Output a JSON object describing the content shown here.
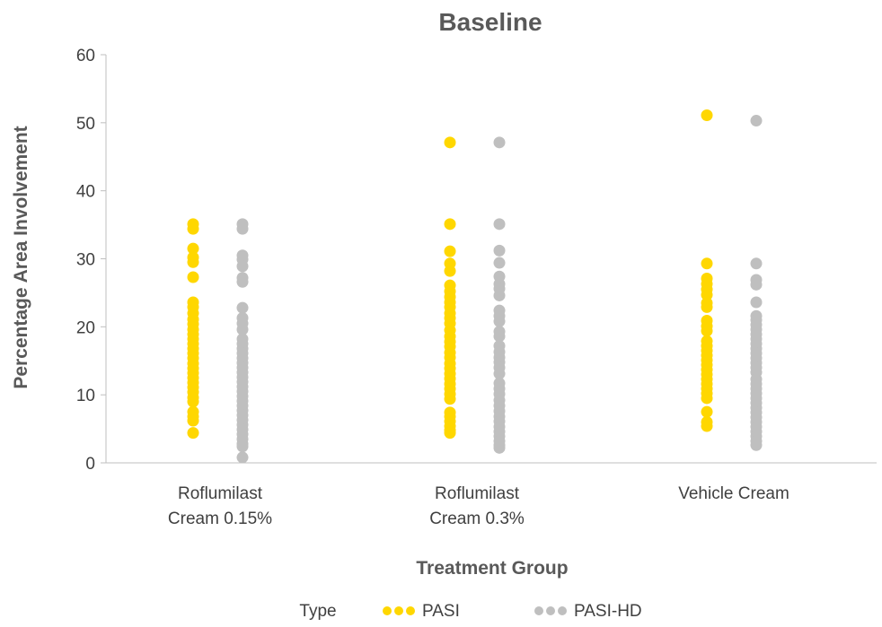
{
  "chart_data": {
    "type": "scatter",
    "title": "Baseline",
    "xlabel": "Treatment Group",
    "ylabel": "Percentage Area Involvement",
    "ylim": [
      0,
      60
    ],
    "yticks": [
      "0",
      "10",
      "20",
      "30",
      "40",
      "50",
      "60"
    ],
    "categories": [
      [
        "Roflumilast",
        "Cream 0.15%"
      ],
      [
        "Roflumilast",
        "Cream 0.3%"
      ],
      [
        "Vehicle Cream"
      ]
    ],
    "grid": false,
    "legend": {
      "title": "Type",
      "position": "bottom"
    },
    "series": [
      {
        "name": "PASI",
        "color": "#FFD700",
        "values": [
          [
            35.1,
            34.4,
            31.5,
            30.2,
            29.5,
            27.3,
            23.6,
            22.9,
            22.0,
            21.1,
            20.4,
            19.6,
            18.9,
            18.2,
            17.5,
            16.8,
            16.1,
            15.4,
            14.6,
            13.9,
            13.2,
            12.5,
            11.8,
            11.1,
            10.4,
            9.6,
            9.0,
            7.5,
            6.8,
            6.2,
            4.4
          ],
          [
            47.1,
            35.1,
            31.1,
            29.3,
            28.2,
            26.1,
            25.2,
            24.4,
            23.6,
            22.9,
            22.0,
            21.3,
            20.5,
            19.5,
            18.6,
            17.8,
            17.1,
            16.2,
            15.5,
            14.6,
            13.9,
            13.1,
            12.4,
            11.6,
            10.9,
            10.1,
            9.4,
            7.4,
            6.8,
            6.1,
            5.4,
            4.8,
            4.4
          ],
          [
            51.1,
            29.3,
            27.1,
            26.3,
            25.5,
            24.7,
            23.5,
            22.9,
            20.9,
            20.1,
            19.4,
            17.9,
            17.2,
            16.5,
            15.8,
            15.1,
            14.4,
            13.7,
            13.0,
            12.3,
            11.6,
            10.9,
            10.2,
            9.5,
            7.5,
            6.0,
            5.4
          ]
        ]
      },
      {
        "name": "PASI-HD",
        "color": "#BFBFBF",
        "values": [
          [
            35.1,
            34.4,
            30.5,
            29.9,
            28.9,
            27.2,
            26.6,
            22.8,
            21.3,
            20.5,
            19.6,
            18.2,
            17.5,
            16.8,
            16.1,
            15.4,
            14.7,
            14.0,
            13.3,
            12.6,
            11.9,
            11.2,
            10.5,
            9.8,
            9.1,
            8.4,
            7.7,
            7.0,
            6.3,
            5.6,
            4.9,
            4.2,
            3.5,
            2.8,
            2.4,
            0.8
          ],
          [
            47.1,
            35.1,
            31.2,
            29.4,
            27.4,
            26.3,
            25.6,
            24.6,
            22.4,
            21.6,
            20.8,
            19.3,
            18.6,
            17.2,
            16.3,
            15.5,
            14.8,
            14.0,
            13.1,
            11.7,
            10.9,
            10.1,
            9.2,
            8.4,
            7.6,
            6.8,
            6.1,
            5.3,
            4.6,
            3.9,
            3.2,
            2.6,
            2.2
          ],
          [
            50.3,
            29.3,
            26.9,
            26.2,
            23.6,
            21.6,
            21.0,
            20.3,
            19.6,
            18.9,
            18.2,
            17.5,
            16.8,
            16.1,
            15.4,
            14.7,
            14.0,
            13.3,
            12.3,
            11.6,
            10.9,
            10.2,
            9.5,
            8.8,
            8.1,
            7.4,
            6.7,
            6.0,
            5.3,
            4.6,
            3.9,
            3.2,
            2.6
          ]
        ]
      }
    ]
  }
}
